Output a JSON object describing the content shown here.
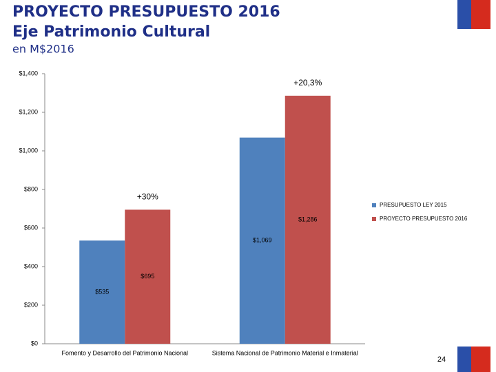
{
  "chart_data": {
    "type": "bar",
    "title": "PROYECTO PRESUPUESTO 2016",
    "subtitle": "Eje Patrimonio Cultural",
    "unit_note": "en M$2016",
    "categories": [
      "Fomento y Desarrollo del Patrimonio Nacional",
      "Sistema Nacional de Patrimonio Material e Inmaterial"
    ],
    "series": [
      {
        "name": "PRESUPUESTO LEY 2015",
        "color": "#4f81bd",
        "values": [
          535,
          1069
        ],
        "value_labels": [
          "$535",
          "$1,069"
        ]
      },
      {
        "name": "PROYECTO PRESUPUESTO 2016",
        "color": "#c0504d",
        "values": [
          695,
          1286
        ],
        "value_labels": [
          "$695",
          "$1,286"
        ]
      }
    ],
    "annotations": [
      "+30%",
      "+20,3%"
    ],
    "ylim": [
      0,
      1400
    ],
    "yticks": [
      {
        "value": 0,
        "label": "$0"
      },
      {
        "value": 200,
        "label": "$200"
      },
      {
        "value": 400,
        "label": "$400"
      },
      {
        "value": 600,
        "label": "$600"
      },
      {
        "value": 800,
        "label": "$800"
      },
      {
        "value": 1000,
        "label": "$1,000"
      },
      {
        "value": 1200,
        "label": "$1,200"
      },
      {
        "value": 1400,
        "label": "$1,400"
      }
    ],
    "grid": false,
    "legend": "right",
    "page_number": "24"
  }
}
